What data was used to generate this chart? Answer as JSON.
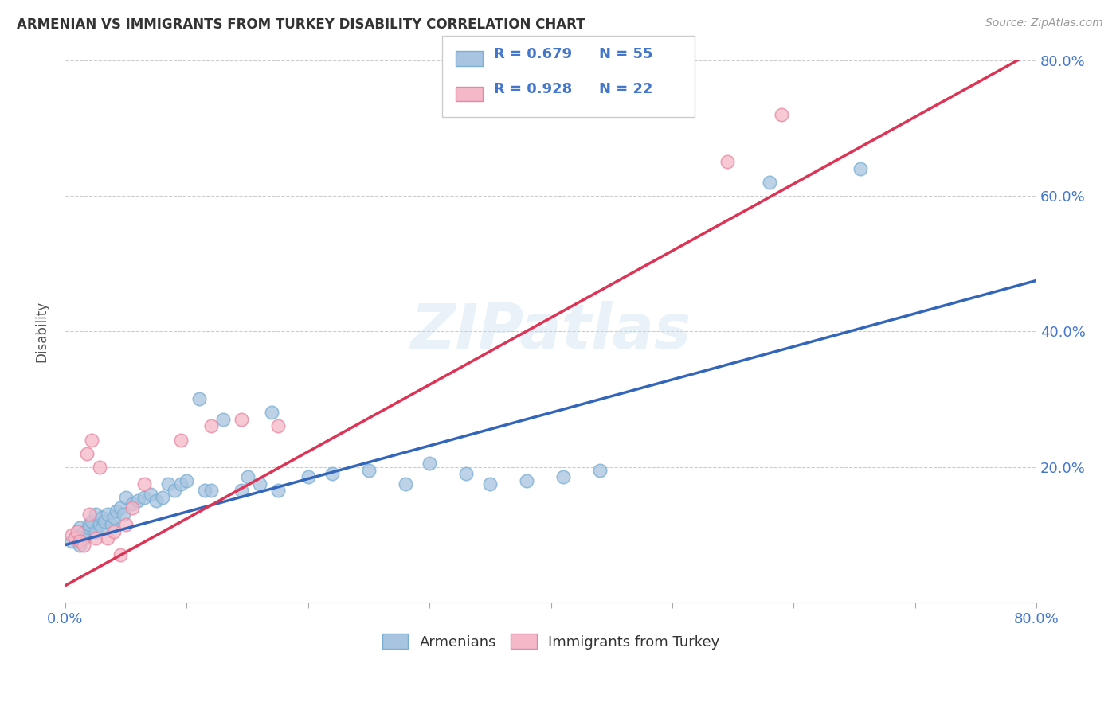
{
  "title": "ARMENIAN VS IMMIGRANTS FROM TURKEY DISABILITY CORRELATION CHART",
  "source": "Source: ZipAtlas.com",
  "ylabel": "Disability",
  "xlim": [
    0,
    0.8
  ],
  "ylim": [
    0,
    0.8
  ],
  "xtick_vals": [
    0.0,
    0.1,
    0.2,
    0.3,
    0.4,
    0.5,
    0.6,
    0.7,
    0.8
  ],
  "xtick_labels_show": {
    "0.0": "0.0%",
    "0.8": "80.0%"
  },
  "ytick_vals": [
    0.2,
    0.4,
    0.6,
    0.8
  ],
  "ytick_labels": [
    "20.0%",
    "40.0%",
    "60.0%",
    "80.0%"
  ],
  "watermark": "ZIPatlas",
  "blue_color": "#a8c4e0",
  "blue_edge_color": "#7aafd4",
  "pink_color": "#f4b8c8",
  "pink_edge_color": "#e888a0",
  "blue_line_color": "#3366bb",
  "pink_line_color": "#dd3355",
  "tick_label_color": "#4477cc",
  "legend_r_blue": "R = 0.679",
  "legend_n_blue": "N = 55",
  "legend_r_pink": "R = 0.928",
  "legend_n_pink": "N = 22",
  "armenians_label": "Armenians",
  "immigrants_label": "Immigrants from Turkey",
  "blue_scatter_x": [
    0.005,
    0.008,
    0.01,
    0.012,
    0.012,
    0.015,
    0.016,
    0.018,
    0.02,
    0.02,
    0.022,
    0.025,
    0.025,
    0.028,
    0.03,
    0.03,
    0.032,
    0.035,
    0.038,
    0.04,
    0.042,
    0.045,
    0.048,
    0.05,
    0.055,
    0.06,
    0.065,
    0.07,
    0.075,
    0.08,
    0.085,
    0.09,
    0.095,
    0.1,
    0.11,
    0.115,
    0.12,
    0.13,
    0.145,
    0.15,
    0.16,
    0.17,
    0.175,
    0.2,
    0.22,
    0.25,
    0.28,
    0.3,
    0.33,
    0.35,
    0.38,
    0.41,
    0.44,
    0.58,
    0.655
  ],
  "blue_scatter_y": [
    0.09,
    0.095,
    0.1,
    0.085,
    0.11,
    0.095,
    0.105,
    0.1,
    0.11,
    0.115,
    0.12,
    0.105,
    0.13,
    0.115,
    0.11,
    0.125,
    0.12,
    0.13,
    0.115,
    0.125,
    0.135,
    0.14,
    0.13,
    0.155,
    0.145,
    0.15,
    0.155,
    0.16,
    0.15,
    0.155,
    0.175,
    0.165,
    0.175,
    0.18,
    0.3,
    0.165,
    0.165,
    0.27,
    0.165,
    0.185,
    0.175,
    0.28,
    0.165,
    0.185,
    0.19,
    0.195,
    0.175,
    0.205,
    0.19,
    0.175,
    0.18,
    0.185,
    0.195,
    0.62,
    0.64
  ],
  "pink_scatter_x": [
    0.005,
    0.008,
    0.01,
    0.012,
    0.015,
    0.018,
    0.02,
    0.022,
    0.025,
    0.028,
    0.035,
    0.04,
    0.045,
    0.05,
    0.055,
    0.065,
    0.095,
    0.12,
    0.145,
    0.175,
    0.545,
    0.59
  ],
  "pink_scatter_y": [
    0.1,
    0.095,
    0.105,
    0.09,
    0.085,
    0.22,
    0.13,
    0.24,
    0.095,
    0.2,
    0.095,
    0.105,
    0.07,
    0.115,
    0.14,
    0.175,
    0.24,
    0.26,
    0.27,
    0.26,
    0.65,
    0.72
  ],
  "blue_line_x": [
    0.0,
    0.8
  ],
  "blue_line_y": [
    0.085,
    0.475
  ],
  "pink_line_x": [
    0.0,
    0.8
  ],
  "pink_line_y": [
    0.025,
    0.815
  ]
}
